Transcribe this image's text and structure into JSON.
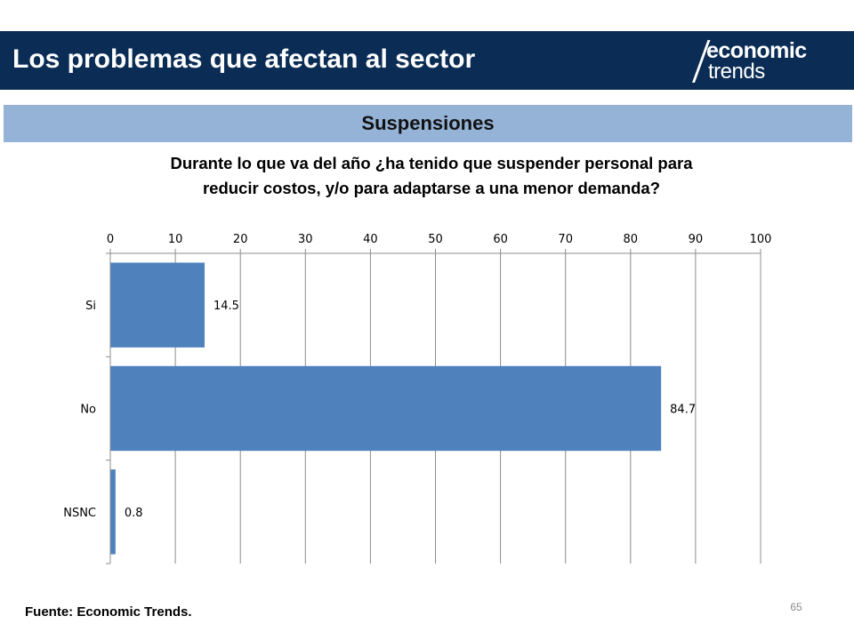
{
  "header": {
    "title": "Los problemas que afectan al sector",
    "logo_top": "economic",
    "logo_bottom": "trends"
  },
  "section": {
    "title": "Suspensiones"
  },
  "question": {
    "line1": "Durante lo que va del año ¿ha tenido que suspender personal para",
    "line2": "reducir costos, y/o para adaptarse a una menor demanda?"
  },
  "chart_data": {
    "type": "bar",
    "orientation": "horizontal",
    "categories": [
      "Si",
      "No",
      "NSNC"
    ],
    "values": [
      14.5,
      84.7,
      0.8
    ],
    "value_labels": [
      "14.5",
      "84.7",
      "0.8"
    ],
    "xlim": [
      0,
      100
    ],
    "x_ticks": [
      0,
      10,
      20,
      30,
      40,
      50,
      60,
      70,
      80,
      90,
      100
    ],
    "x_axis_position": "top",
    "grid": true,
    "bar_color": "#4f81bd"
  },
  "footer": {
    "source": "Fuente: Economic Trends.",
    "page_number": "65"
  }
}
